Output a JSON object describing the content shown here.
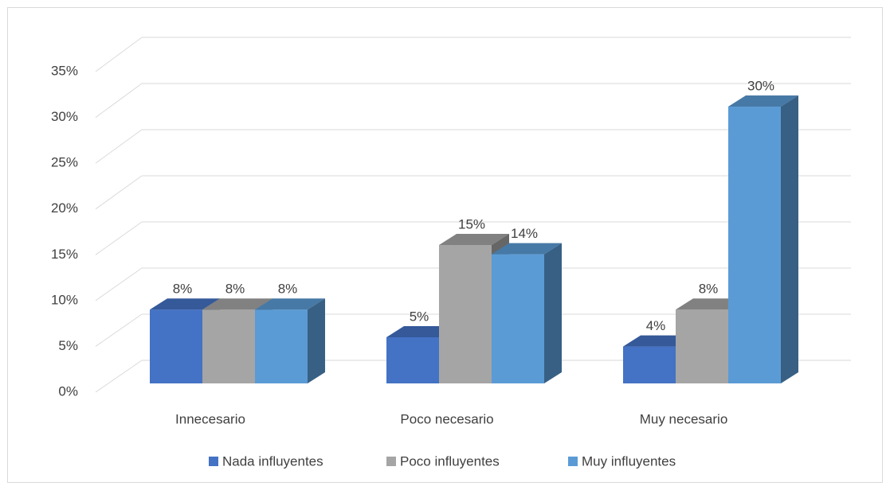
{
  "chart_data": {
    "type": "bar3d",
    "categories": [
      "Innecesario",
      "Poco necesario",
      "Muy necesario"
    ],
    "series": [
      {
        "name": "Nada influyentes",
        "color": "#4472c4",
        "values": [
          8,
          5,
          4
        ],
        "value_labels": [
          "8%",
          "5%",
          "4%"
        ]
      },
      {
        "name": "Poco influyentes",
        "color": "#a5a5a5",
        "values": [
          8,
          15,
          8
        ],
        "value_labels": [
          "8%",
          "15%",
          "8%"
        ]
      },
      {
        "name": "Muy influyentes",
        "color": "#5b9bd5",
        "values": [
          8,
          14,
          30
        ],
        "value_labels": [
          "8%",
          "14%",
          "30%"
        ]
      }
    ],
    "ylim": [
      0,
      35
    ],
    "yticks": [
      {
        "value": 0,
        "label": "0%"
      },
      {
        "value": 5,
        "label": "5%"
      },
      {
        "value": 10,
        "label": "10%"
      },
      {
        "value": 15,
        "label": "15%"
      },
      {
        "value": 20,
        "label": "20%"
      },
      {
        "value": 25,
        "label": "25%"
      },
      {
        "value": 30,
        "label": "30%"
      },
      {
        "value": 35,
        "label": "35%"
      }
    ],
    "grid": true,
    "legend": "bottom"
  }
}
